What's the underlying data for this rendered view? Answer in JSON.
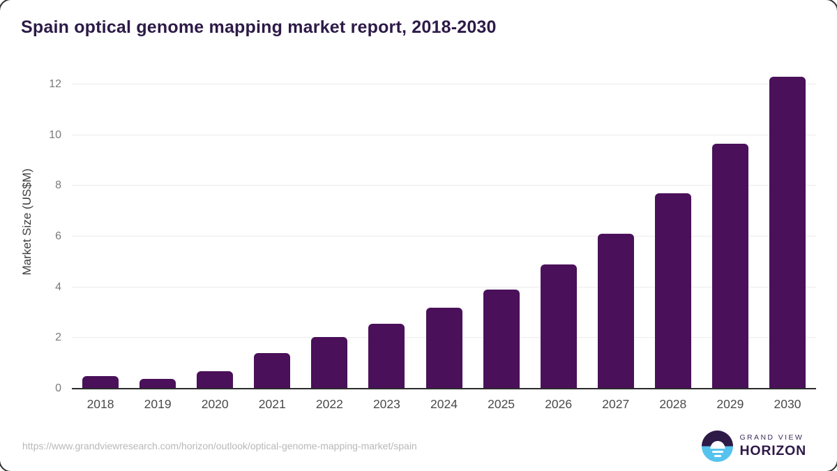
{
  "header": {
    "title": "Spain optical genome mapping market report, 2018-2030"
  },
  "chart_data": {
    "type": "bar",
    "title": "Spain optical genome mapping market report, 2018-2030",
    "categories": [
      "2018",
      "2019",
      "2020",
      "2021",
      "2022",
      "2023",
      "2024",
      "2025",
      "2026",
      "2027",
      "2028",
      "2029",
      "2030"
    ],
    "values": [
      0.5,
      0.4,
      0.7,
      1.4,
      2.05,
      2.55,
      3.2,
      3.9,
      4.9,
      6.1,
      7.7,
      9.65,
      12.3
    ],
    "xlabel": "",
    "ylabel": "Market Size (US$M)",
    "ylim": [
      0,
      12.85
    ],
    "yticks": [
      0,
      2,
      4,
      6,
      8,
      10,
      12
    ],
    "grid": true,
    "legend": "none",
    "bar_color": "#4a1059"
  },
  "footer": {
    "source_url": "https://www.grandviewresearch.com/horizon/outlook/optical-genome-mapping-market/spain",
    "logo": {
      "line1": "GRAND VIEW",
      "line2": "HORIZON"
    }
  },
  "colors": {
    "bar": "#4a1059",
    "title": "#2d1a47",
    "axis_line": "#2b2b2b",
    "gridline": "#ececec",
    "y_tick": "#7a7a7a",
    "x_tick": "#4a4a4a",
    "y_axis_label": "#3d3d3d",
    "url_text": "#b8b8b8",
    "logo_purple": "#2d1a47",
    "logo_blue": "#56c3ee"
  }
}
